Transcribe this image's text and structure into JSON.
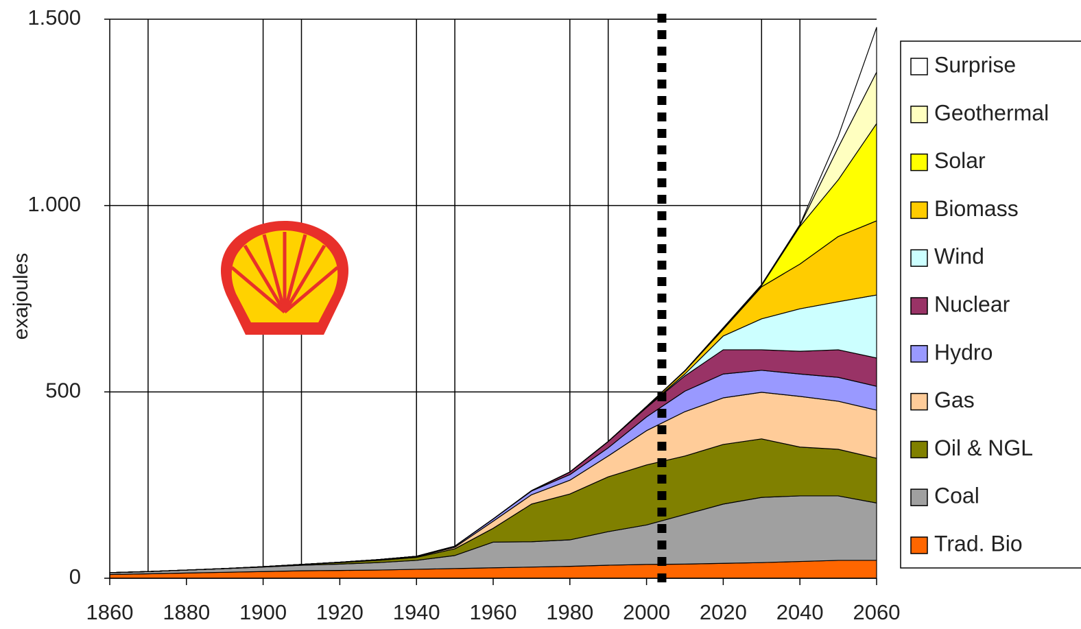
{
  "chart_data": {
    "type": "stacked_area",
    "y_label": "exajoules",
    "x": [
      1860,
      1870,
      1880,
      1890,
      1900,
      1910,
      1920,
      1930,
      1940,
      1950,
      1960,
      1970,
      1980,
      1990,
      2000,
      2010,
      2020,
      2030,
      2040,
      2050,
      2060
    ],
    "series": [
      {
        "name": "Surprise",
        "color": "#ffffff",
        "values": [
          0,
          0,
          0,
          0,
          0,
          0,
          0,
          0,
          0,
          0,
          0,
          0,
          0,
          0,
          0,
          0,
          0,
          1,
          2,
          30,
          120
        ]
      },
      {
        "name": "Geothermal",
        "color": "#ffffc0",
        "values": [
          0,
          0,
          0,
          0,
          0,
          0,
          0,
          0,
          0,
          0,
          0,
          0,
          0,
          0,
          0,
          0,
          1,
          2,
          3,
          87,
          138
        ]
      },
      {
        "name": "Solar",
        "color": "#ffff00",
        "values": [
          0,
          0,
          0,
          0,
          0,
          0,
          0,
          0,
          0,
          0,
          0,
          0,
          0,
          0,
          0,
          1,
          3,
          3,
          101,
          152,
          261
        ]
      },
      {
        "name": "Biomass",
        "color": "#ffcc00",
        "values": [
          0,
          0,
          0,
          0,
          0,
          0,
          0,
          0,
          0,
          0,
          0,
          0,
          0,
          0,
          2,
          8,
          18,
          86,
          120,
          175,
          199
        ]
      },
      {
        "name": "Wind",
        "color": "#ccffff",
        "values": [
          0,
          0,
          0,
          0,
          0,
          0,
          0,
          0,
          0,
          0,
          0,
          0,
          0,
          0,
          1,
          5,
          37,
          83,
          114,
          129,
          169
        ]
      },
      {
        "name": "Nuclear",
        "color": "#993366",
        "values": [
          0,
          0,
          0,
          0,
          0,
          0,
          0,
          0,
          0,
          0,
          0,
          1,
          7,
          17,
          25,
          41,
          65,
          55,
          61,
          74,
          76
        ]
      },
      {
        "name": "Hydro",
        "color": "#9999ff",
        "values": [
          0,
          0,
          0,
          0,
          0,
          0,
          0,
          1,
          1,
          3,
          6,
          10,
          15,
          22,
          37,
          55,
          64,
          59,
          60,
          64,
          64
        ]
      },
      {
        "name": "Gas",
        "color": "#ffcc99",
        "values": [
          0,
          0,
          0,
          0,
          0,
          0,
          1,
          1,
          2,
          4,
          19,
          25,
          37,
          56,
          92,
          119,
          125,
          125,
          136,
          129,
          129
        ]
      },
      {
        "name": "Oil & NGL",
        "color": "#808000",
        "values": [
          0,
          0,
          0,
          0,
          1,
          2,
          4,
          6,
          8,
          18,
          37,
          101,
          123,
          147,
          161,
          157,
          160,
          157,
          131,
          125,
          120
        ]
      },
      {
        "name": "Coal",
        "color": "#a0a0a0",
        "values": [
          5,
          6,
          8,
          10,
          12,
          15,
          17,
          20,
          24,
          35,
          69,
          68,
          71,
          90,
          106,
          133,
          159,
          175,
          176,
          173,
          154
        ]
      },
      {
        "name": "Trad. Bio",
        "color": "#ff6600",
        "values": [
          10,
          12,
          14,
          16,
          18,
          20,
          21,
          22,
          24,
          26,
          28,
          30,
          32,
          35,
          37,
          38,
          40,
          42,
          45,
          48,
          48
        ]
      }
    ],
    "xlim": [
      1860,
      2060
    ],
    "xticks": [
      1860,
      1880,
      1900,
      1920,
      1940,
      1960,
      1980,
      2000,
      2020,
      2040,
      2060
    ],
    "ylim": [
      0,
      1500
    ],
    "yticks": [
      {
        "value": 0,
        "label": "0"
      },
      {
        "value": 500,
        "label": "500"
      },
      {
        "value": 1000,
        "label": "1.000"
      },
      {
        "value": 1500,
        "label": "1.500"
      }
    ],
    "grid": true,
    "vertical_grid": [
      1870,
      1900,
      1910,
      1940,
      1950,
      1980,
      1990,
      2030,
      2040
    ],
    "reference_line": 2004,
    "legend": "right"
  }
}
